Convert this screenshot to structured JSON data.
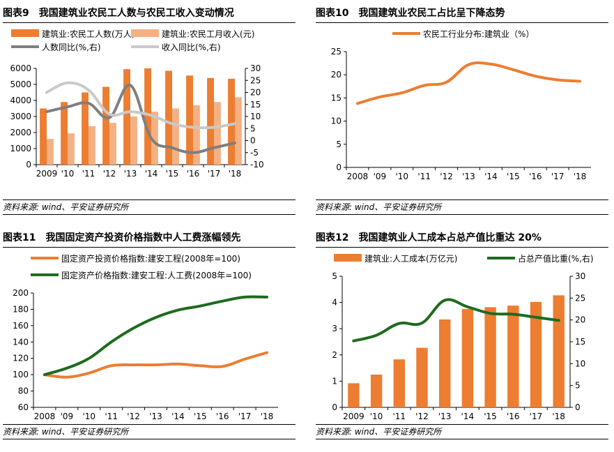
{
  "charts": [
    {
      "id": "c9",
      "title_num": "图表9",
      "title_text": "我国建筑业农民工人数与农民工收入变动情况",
      "source": "资料来源: wind、平安证券研究所",
      "chart_data": {
        "type": "bar",
        "categories": [
          "2009",
          "'10",
          "'11",
          "'12",
          "'13",
          "'14",
          "'15",
          "'16",
          "'17",
          "'18"
        ],
        "series": [
          {
            "name": "建筑业:农民工人数(万人)",
            "kind": "bar",
            "axis": "left",
            "color": "#ED7D31",
            "values": [
              3500,
              3900,
              4500,
              4850,
              5950,
              6000,
              5850,
              5550,
              5400,
              5350
            ]
          },
          {
            "name": "建筑业:农民工月收入(元)",
            "kind": "bar",
            "axis": "left",
            "color": "#F4B183",
            "values": [
              1600,
              1950,
              2400,
              2600,
              3000,
              3300,
              3500,
              3700,
              3900,
              4200
            ]
          },
          {
            "name": "人数同比(%,右)",
            "kind": "line",
            "axis": "right",
            "color": "#7F7F7F",
            "values": [
              12,
              14,
              15.5,
              9.5,
              23,
              1,
              -3,
              -5,
              -3,
              -1
            ]
          },
          {
            "name": "收入同比(%,右)",
            "kind": "line",
            "axis": "right",
            "color": "#C9C9C9",
            "values": [
              20,
              24,
              21,
              11,
              12,
              10.5,
              7,
              5.5,
              5.5,
              7
            ]
          }
        ],
        "ylim_left": [
          0,
          6000
        ],
        "yticks_left": [
          0,
          1000,
          2000,
          3000,
          4000,
          5000,
          6000
        ],
        "ylim_right": [
          -10,
          30
        ],
        "yticks_right": [
          -10,
          -5,
          0,
          5,
          10,
          15,
          20,
          25,
          30
        ],
        "legend_position": "top"
      }
    },
    {
      "id": "c10",
      "title_num": "图表10",
      "title_text": "我国建筑业农民工占比呈下降态势",
      "source": "资料来源: wind、平安证券研究所",
      "chart_data": {
        "type": "line",
        "categories": [
          "2008",
          "'09",
          "'10",
          "'11",
          "'12",
          "'13",
          "'14",
          "'15",
          "'16",
          "'17",
          "'18"
        ],
        "series": [
          {
            "name": "农民工行业分布:建筑业（%）",
            "axis": "left",
            "color": "#ED7D31",
            "values": [
              13.8,
              15.2,
              16.1,
              17.7,
              18.4,
              22.2,
              22.3,
              21.1,
              19.7,
              18.9,
              18.6
            ]
          }
        ],
        "ylim_left": [
          0,
          25
        ],
        "yticks_left": [
          0,
          5,
          10,
          15,
          20,
          25
        ],
        "legend_position": "top"
      }
    },
    {
      "id": "c11",
      "title_num": "图表11",
      "title_text": "我国固定资产投资价格指数中人工费涨幅领先",
      "source": "资料来源: wind、平安证券研究所",
      "chart_data": {
        "type": "line",
        "categories": [
          "2008",
          "'09",
          "'10",
          "'11",
          "'12",
          "'13",
          "'14",
          "'15",
          "'16",
          "'17",
          "'18"
        ],
        "series": [
          {
            "name": "固定资产投资价格指数:建安工程(2008年=100)",
            "axis": "left",
            "color": "#ED7D31",
            "values": [
              100,
              97,
              102,
              111,
              112,
              112,
              113,
              111,
              110,
              119,
              127
            ]
          },
          {
            "name": "固定资产价格指数:建安工程:人工费(2008年=100)",
            "axis": "left",
            "color": "#1E6B1E",
            "values": [
              100,
              108,
              120,
              140,
              157,
              170,
              179,
              184,
              190,
              195,
              195
            ]
          }
        ],
        "ylim_left": [
          60,
          200
        ],
        "yticks_left": [
          60,
          80,
          100,
          120,
          140,
          160,
          180,
          200
        ],
        "legend_position": "top"
      }
    },
    {
      "id": "c12",
      "title_num": "图表12",
      "title_text": "我国建筑业人工成本占总产值比重达 20%",
      "source": "资料来源: wind、平安证券研究所",
      "chart_data": {
        "type": "bar",
        "categories": [
          "2009",
          "'10",
          "'11",
          "'12",
          "'13",
          "'14",
          "'15",
          "'16",
          "'17",
          "'18"
        ],
        "series": [
          {
            "name": "建筑业:人工成本(万亿元)",
            "kind": "bar",
            "axis": "left",
            "color": "#ED7D31",
            "values": [
              0.92,
              1.25,
              1.83,
              2.27,
              3.35,
              3.75,
              3.82,
              3.88,
              4.02,
              4.27
            ]
          },
          {
            "name": "占总产值比重(%,右)",
            "kind": "line",
            "axis": "right",
            "color": "#1E6B1E",
            "values": [
              15.2,
              16.5,
              19.2,
              19.3,
              24.5,
              23,
              21.5,
              21.3,
              20.6,
              19.9
            ]
          }
        ],
        "ylim_left": [
          0,
          5
        ],
        "yticks_left": [
          0,
          1,
          2,
          3,
          4,
          5
        ],
        "ylim_right": [
          0,
          30
        ],
        "yticks_right": [
          0,
          5,
          10,
          15,
          20,
          25,
          30
        ],
        "legend_position": "top"
      }
    }
  ]
}
